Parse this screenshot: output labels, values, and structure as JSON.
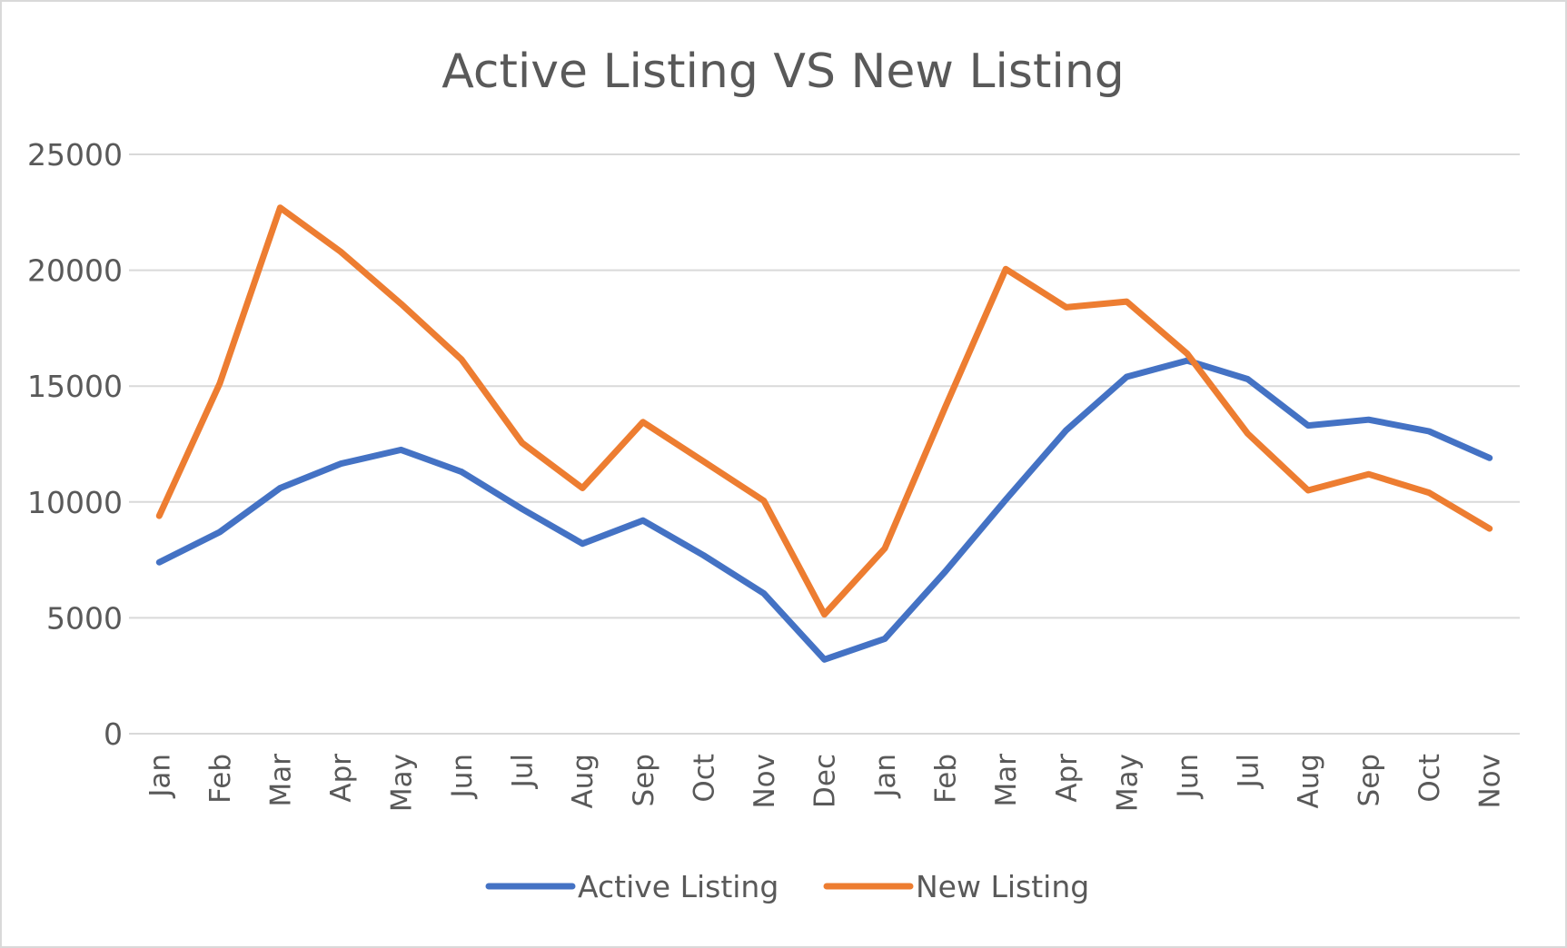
{
  "chart_data": {
    "type": "line",
    "title": "Active Listing VS New Listing",
    "xlabel": "",
    "ylabel": "",
    "categories": [
      "Jan",
      "Feb",
      "Mar",
      "Apr",
      "May",
      "Jun",
      "Jul",
      "Aug",
      "Sep",
      "Oct",
      "Nov",
      "Dec",
      "Jan",
      "Feb",
      "Mar",
      "Apr",
      "May",
      "Jun",
      "Jul",
      "Aug",
      "Sep",
      "Oct",
      "Nov"
    ],
    "ylim": [
      0,
      25000
    ],
    "yticks": [
      "0",
      "5000",
      "10000",
      "15000",
      "20000",
      "25000"
    ],
    "grid": true,
    "legend_position": "bottom",
    "series": [
      {
        "name": "Active Listing",
        "color": "#4472c4",
        "values": [
          7400,
          8700,
          10600,
          11650,
          12250,
          11300,
          9700,
          8200,
          9200,
          7700,
          6050,
          3200,
          4100,
          7000,
          10100,
          13100,
          15400,
          16100,
          15300,
          13300,
          13550,
          13050,
          11900
        ]
      },
      {
        "name": "New Listing",
        "color": "#ed7d31",
        "values": [
          9400,
          15100,
          22700,
          20800,
          18550,
          16150,
          12550,
          10600,
          13450,
          11750,
          10050,
          5150,
          8000,
          14100,
          20050,
          18400,
          18650,
          16400,
          12950,
          10500,
          11200,
          10400,
          8850
        ]
      }
    ]
  }
}
